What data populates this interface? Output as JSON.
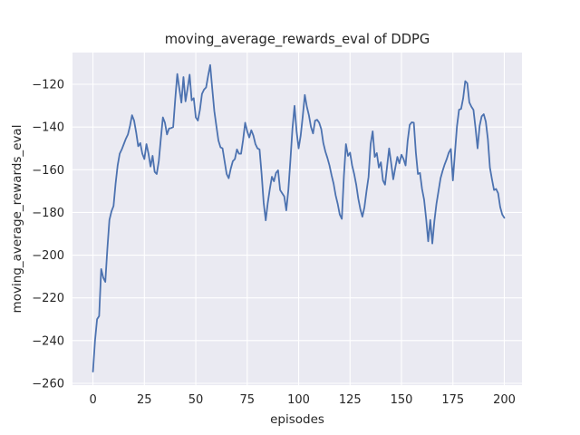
{
  "figure": {
    "background": "#ffffff"
  },
  "chart_data": {
    "type": "line",
    "title": "moving_average_rewards_eval of DDPG",
    "xlabel": "episodes",
    "ylabel": "moving_average_rewards_eval",
    "grid": true,
    "legend": null,
    "xlim": [
      -9.95,
      208.6
    ],
    "ylim": [
      -260.85,
      -105.15
    ],
    "xticks": {
      "values": [
        0,
        25,
        50,
        75,
        100,
        125,
        150,
        175,
        200
      ],
      "labels": [
        "0",
        "25",
        "50",
        "75",
        "100",
        "125",
        "150",
        "175",
        "200"
      ]
    },
    "yticks": {
      "values": [
        -120,
        -140,
        -160,
        -180,
        -200,
        -220,
        -240,
        -260
      ],
      "labels": [
        "−120",
        "−140",
        "−160",
        "−180",
        "−200",
        "−220",
        "−240",
        "−260"
      ]
    },
    "style": {
      "line_color": "#4c72b0",
      "line_width": 1.8,
      "axes_background": "#eaeaf2",
      "grid_color": "#ffffff",
      "text_color": "#262626"
    },
    "series": [
      {
        "name": "moving_average_rewards_eval",
        "color": "#4c72b0",
        "x_start": 0,
        "x_step": 1,
        "y": [
          -254.5,
          -240,
          -230,
          -228.5,
          -206.5,
          -210.5,
          -212.5,
          -197,
          -183.5,
          -179.5,
          -177,
          -166.5,
          -158,
          -152.5,
          -150.5,
          -148,
          -145.5,
          -143.5,
          -139.5,
          -134.5,
          -137,
          -142.5,
          -149,
          -147.5,
          -152.5,
          -155,
          -148,
          -152.5,
          -158.5,
          -153.5,
          -161,
          -162,
          -156,
          -145.5,
          -135.5,
          -138,
          -143.5,
          -140.7,
          -140.5,
          -140,
          -127,
          -115.2,
          -122,
          -128.6,
          -116.6,
          -128,
          -122,
          -115.5,
          -127.5,
          -126.5,
          -135.5,
          -137,
          -132,
          -124.5,
          -122.5,
          -121.5,
          -116,
          -111,
          -122,
          -132.5,
          -139.5,
          -146.3,
          -149.5,
          -150,
          -156,
          -162,
          -164,
          -159.5,
          -156,
          -155,
          -150.5,
          -152.5,
          -152.5,
          -146,
          -138,
          -142,
          -144.9,
          -141.5,
          -144,
          -148,
          -150,
          -150.5,
          -162,
          -175.5,
          -183.7,
          -175.5,
          -169,
          -163.3,
          -165.4,
          -161.5,
          -160.3,
          -169.5,
          -171,
          -172.5,
          -179,
          -169.5,
          -155.5,
          -140.7,
          -130.1,
          -142,
          -150,
          -144,
          -135,
          -125,
          -130.5,
          -134.5,
          -140,
          -143,
          -137,
          -136.6,
          -138,
          -141,
          -147.5,
          -151.5,
          -154.5,
          -158,
          -162.5,
          -166.5,
          -172,
          -176,
          -181,
          -183,
          -163,
          -148,
          -153.5,
          -152,
          -158,
          -162,
          -167,
          -173.5,
          -178.5,
          -182,
          -177.5,
          -170,
          -163.3,
          -148,
          -142,
          -154,
          -152.2,
          -159,
          -156.5,
          -165,
          -167,
          -158.5,
          -150,
          -157,
          -164.5,
          -159,
          -154,
          -157,
          -153,
          -155,
          -158,
          -146.5,
          -139,
          -137.8,
          -138,
          -152,
          -162,
          -161.5,
          -169,
          -174,
          -183,
          -193.5,
          -183.5,
          -194.5,
          -184,
          -176,
          -170,
          -164,
          -160.5,
          -157.5,
          -155,
          -152,
          -150.3,
          -165,
          -152,
          -139.5,
          -131.9,
          -131.5,
          -126.5,
          -118.5,
          -119.5,
          -128.5,
          -130.5,
          -132,
          -140.5,
          -150,
          -139.5,
          -135,
          -134,
          -137.5,
          -145.6,
          -159,
          -164.5,
          -169.5,
          -169,
          -171,
          -177.5,
          -181,
          -182.5
        ]
      }
    ]
  }
}
